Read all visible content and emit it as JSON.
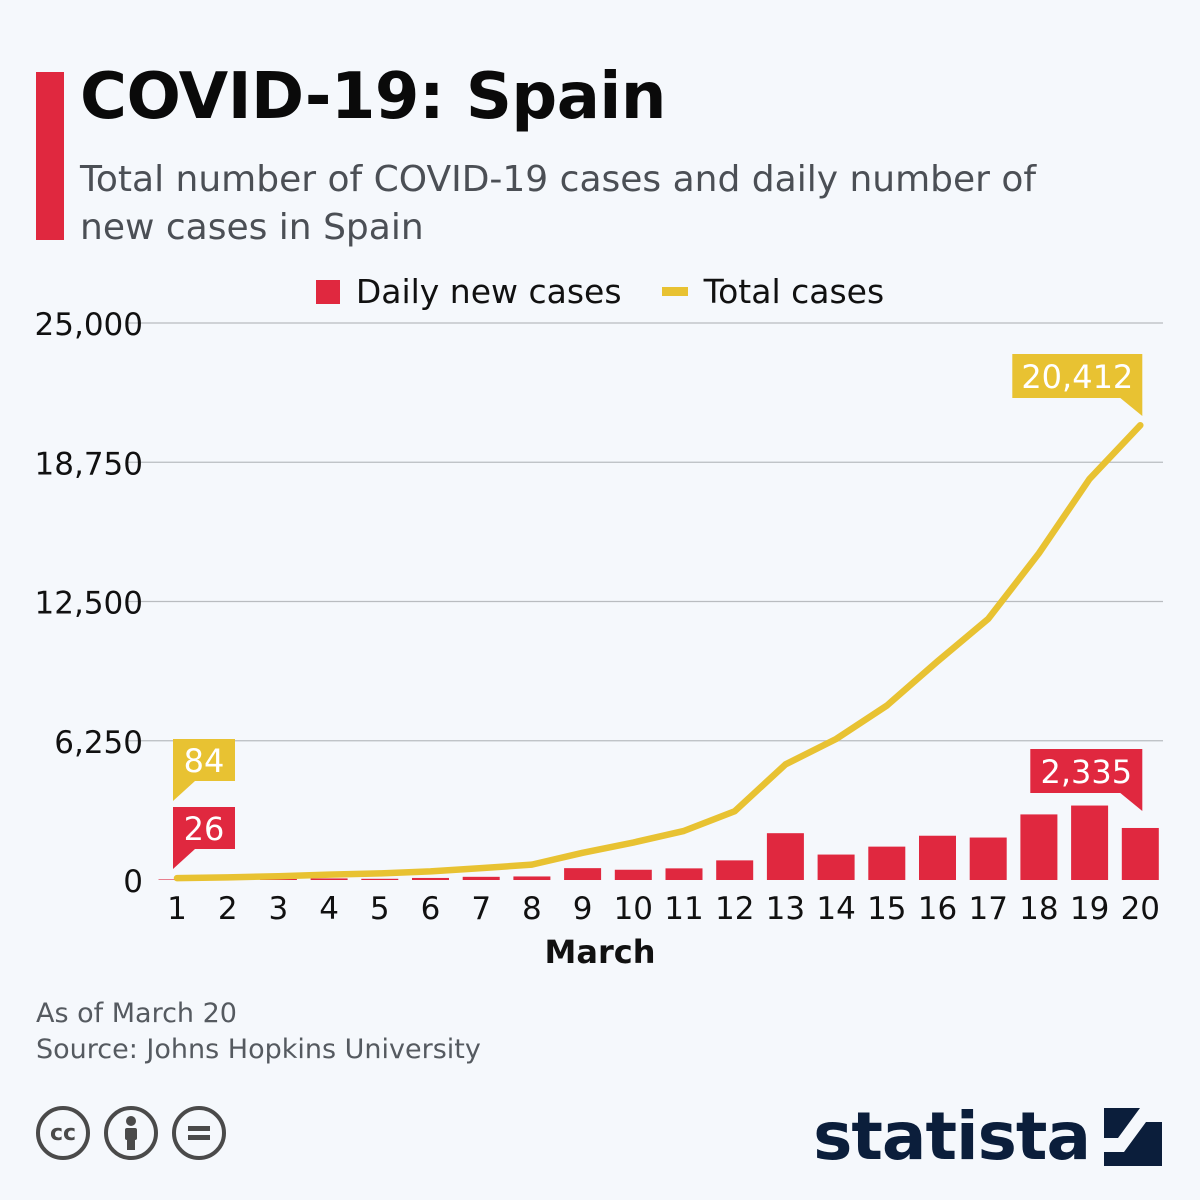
{
  "header": {
    "title": "COVID-19: Spain",
    "subtitle": "Total number of COVID-19 cases and daily number of new cases in Spain"
  },
  "legend": {
    "daily": "Daily new cases",
    "total": "Total cases"
  },
  "colors": {
    "accent": "#e0283f",
    "daily": "#e0283f",
    "total": "#e8c232",
    "gridline": "#b9bcc0"
  },
  "chart_data": {
    "type": "bar",
    "xlabel": "March",
    "ylabel": "",
    "ylim": [
      0,
      25000
    ],
    "yticks": [
      0,
      6250,
      12500,
      18750,
      25000
    ],
    "ytick_labels": [
      "0",
      "6,250",
      "12,500",
      "18,750",
      "25,000"
    ],
    "categories": [
      "1",
      "2",
      "3",
      "4",
      "5",
      "6",
      "7",
      "8",
      "9",
      "10",
      "11",
      "12",
      "13",
      "14",
      "15",
      "16",
      "17",
      "18",
      "19",
      "20"
    ],
    "series": [
      {
        "name": "Daily new cases",
        "type": "bar",
        "values": [
          26,
          36,
          51,
          71,
          54,
          92,
          143,
          159,
          532,
          460,
          522,
          881,
          2101,
          1142,
          1498,
          1987,
          1906,
          2944,
          3342,
          2335
        ]
      },
      {
        "name": "Total cases",
        "type": "line",
        "values": [
          84,
          120,
          171,
          242,
          296,
          388,
          531,
          690,
          1222,
          1682,
          2204,
          3085,
          5186,
          6328,
          7826,
          9813,
          11719,
          14663,
          18005,
          20412
        ]
      }
    ],
    "annotations": [
      {
        "series": "Total cases",
        "index": 0,
        "text": "84"
      },
      {
        "series": "Daily new cases",
        "index": 0,
        "text": "26"
      },
      {
        "series": "Total cases",
        "index": 19,
        "text": "20,412"
      },
      {
        "series": "Daily new cases",
        "index": 19,
        "text": "2,335"
      }
    ]
  },
  "footer": {
    "note": "As of March 20",
    "source": "Source: Johns Hopkins University",
    "logo": "statista",
    "license_icons": [
      "cc-icon",
      "by-icon",
      "nd-icon"
    ]
  }
}
